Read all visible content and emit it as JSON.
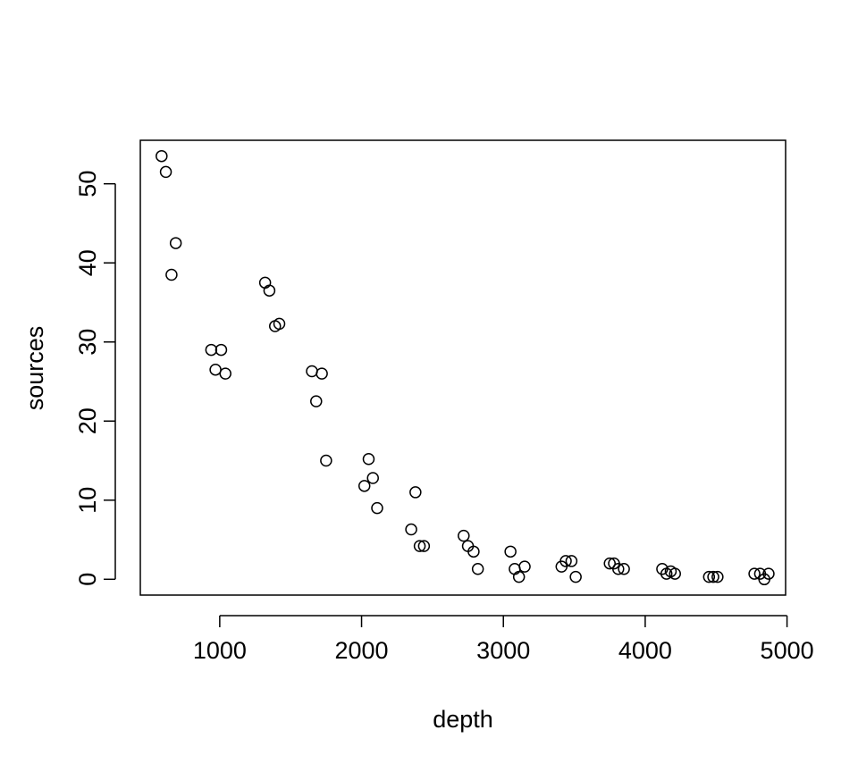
{
  "chart_data": {
    "type": "scatter",
    "xlabel": "depth",
    "ylabel": "sources",
    "xlim": [
      440,
      4990
    ],
    "ylim": [
      -2,
      55.5
    ],
    "x_ticks": [
      1000,
      2000,
      3000,
      4000,
      5000
    ],
    "y_ticks": [
      0,
      10,
      20,
      30,
      40,
      50
    ],
    "x_tick_labels": [
      "1000",
      "2000",
      "3000",
      "4000",
      "5000"
    ],
    "y_tick_labels": [
      "0",
      "10",
      "20",
      "30",
      "40",
      "50"
    ],
    "grid": false,
    "marker": "open-circle",
    "colors": {
      "axis": "#000000",
      "marker_stroke": "#000000",
      "background": "#ffffff"
    },
    "points": [
      {
        "x": 590,
        "y": 53.5
      },
      {
        "x": 620,
        "y": 51.5
      },
      {
        "x": 660,
        "y": 38.5
      },
      {
        "x": 690,
        "y": 42.5
      },
      {
        "x": 940,
        "y": 29.0
      },
      {
        "x": 970,
        "y": 26.5
      },
      {
        "x": 1010,
        "y": 29.0
      },
      {
        "x": 1040,
        "y": 26.0
      },
      {
        "x": 1320,
        "y": 37.5
      },
      {
        "x": 1350,
        "y": 36.5
      },
      {
        "x": 1390,
        "y": 32.0
      },
      {
        "x": 1420,
        "y": 32.3
      },
      {
        "x": 1650,
        "y": 26.3
      },
      {
        "x": 1680,
        "y": 22.5
      },
      {
        "x": 1720,
        "y": 26.0
      },
      {
        "x": 1750,
        "y": 15.0
      },
      {
        "x": 2020,
        "y": 11.8
      },
      {
        "x": 2050,
        "y": 15.2
      },
      {
        "x": 2080,
        "y": 12.8
      },
      {
        "x": 2110,
        "y": 9.0
      },
      {
        "x": 2350,
        "y": 6.3
      },
      {
        "x": 2380,
        "y": 11.0
      },
      {
        "x": 2410,
        "y": 4.2
      },
      {
        "x": 2440,
        "y": 4.2
      },
      {
        "x": 2720,
        "y": 5.5
      },
      {
        "x": 2750,
        "y": 4.2
      },
      {
        "x": 2790,
        "y": 3.5
      },
      {
        "x": 2820,
        "y": 1.3
      },
      {
        "x": 3050,
        "y": 3.5
      },
      {
        "x": 3080,
        "y": 1.3
      },
      {
        "x": 3110,
        "y": 0.3
      },
      {
        "x": 3150,
        "y": 1.6
      },
      {
        "x": 3410,
        "y": 1.6
      },
      {
        "x": 3440,
        "y": 2.3
      },
      {
        "x": 3480,
        "y": 2.3
      },
      {
        "x": 3510,
        "y": 0.3
      },
      {
        "x": 3750,
        "y": 2.0
      },
      {
        "x": 3780,
        "y": 2.0
      },
      {
        "x": 3810,
        "y": 1.3
      },
      {
        "x": 3850,
        "y": 1.3
      },
      {
        "x": 4120,
        "y": 1.3
      },
      {
        "x": 4150,
        "y": 0.7
      },
      {
        "x": 4180,
        "y": 1.0
      },
      {
        "x": 4210,
        "y": 0.7
      },
      {
        "x": 4450,
        "y": 0.3
      },
      {
        "x": 4480,
        "y": 0.3
      },
      {
        "x": 4510,
        "y": 0.3
      },
      {
        "x": 4770,
        "y": 0.7
      },
      {
        "x": 4810,
        "y": 0.7
      },
      {
        "x": 4840,
        "y": 0.0
      },
      {
        "x": 4870,
        "y": 0.7
      }
    ]
  }
}
